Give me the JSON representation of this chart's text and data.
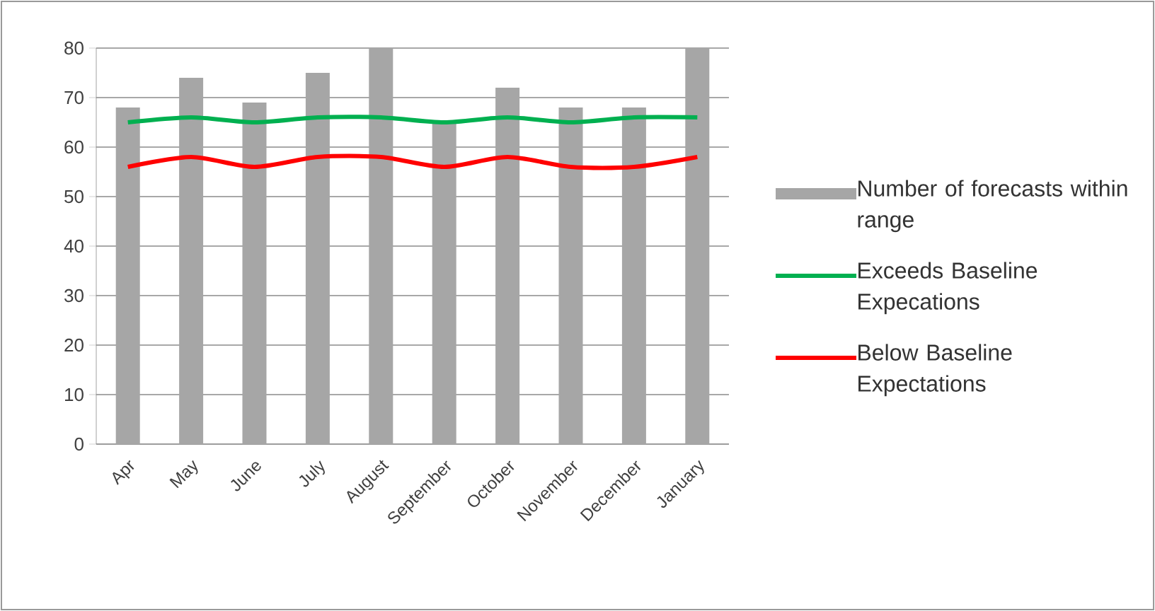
{
  "chart_data": {
    "type": "bar",
    "categories": [
      "Apr",
      "May",
      "June",
      "July",
      "August",
      "September",
      "October",
      "November",
      "December",
      "January"
    ],
    "series": [
      {
        "name": "Number of forecasts within range",
        "color": "#a6a6a6",
        "values": [
          68,
          74,
          69,
          75,
          80,
          65,
          72,
          68,
          68,
          80
        ]
      },
      {
        "name": "Exceeds Baseline Expecations",
        "type": "line",
        "color": "#00b050",
        "values": [
          65,
          66,
          65,
          66,
          66,
          65,
          66,
          65,
          66,
          66
        ]
      },
      {
        "name": "Below Baseline Expectations",
        "type": "line",
        "color": "#ff0000",
        "values": [
          56,
          58,
          56,
          58,
          58,
          56,
          58,
          56,
          56,
          58
        ]
      }
    ],
    "ylim": [
      0,
      80
    ],
    "yticks": [
      0,
      10,
      20,
      30,
      40,
      50,
      60,
      70,
      80
    ],
    "grid": "y",
    "legend": "right",
    "marker": "none"
  }
}
